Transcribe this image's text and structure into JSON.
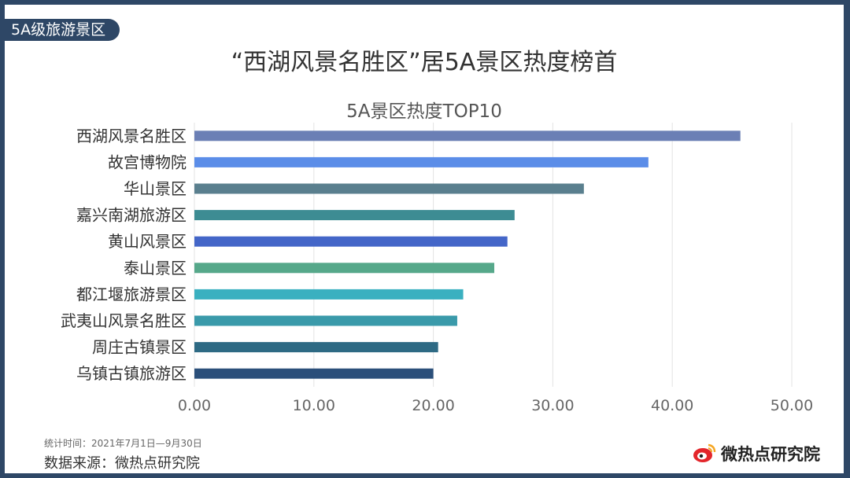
{
  "header": {
    "tag": "5A级旅游景区",
    "title": "“西湖风景名胜区”居5A景区热度榜首"
  },
  "chart_data": {
    "type": "bar",
    "orientation": "horizontal",
    "title": "5A景区热度TOP10",
    "categories": [
      "西湖风景名胜区",
      "故宫博物院",
      "华山景区",
      "嘉兴南湖旅游区",
      "黄山风景区",
      "泰山景区",
      "都江堰旅游景区",
      "武夷山风景名胜区",
      "周庄古镇景区",
      "乌镇古镇旅游区"
    ],
    "values": [
      45.7,
      38.0,
      32.6,
      26.8,
      26.2,
      25.1,
      22.5,
      22.0,
      20.4,
      20.0
    ],
    "colors": [
      "#6b7fb5",
      "#5b8de8",
      "#5a7f8e",
      "#3d8c93",
      "#4466c8",
      "#56a88a",
      "#3ab0c0",
      "#3a9aaa",
      "#2e6a84",
      "#2b4f7a"
    ],
    "xlim": [
      0,
      50
    ],
    "xticks": [
      "0.00",
      "10.00",
      "20.00",
      "30.00",
      "40.00",
      "50.00"
    ],
    "grid": true,
    "legend": "none"
  },
  "footer": {
    "time_note": "统计时间：2021年7月1日—9月30日",
    "source": "数据来源：微热点研究院",
    "brand": "微热点研究院"
  },
  "colors": {
    "frame": "#2e4766",
    "grid": "#e3e3e3"
  }
}
